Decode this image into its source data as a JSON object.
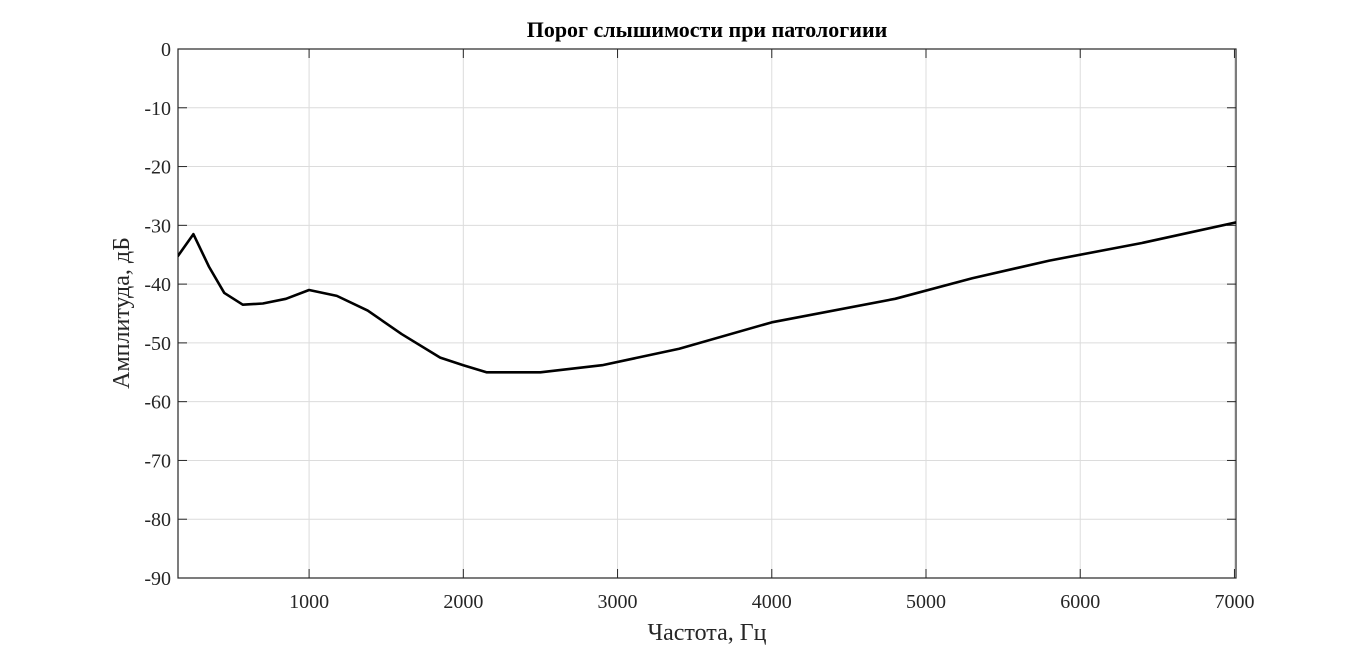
{
  "chart_data": {
    "type": "line",
    "title": "Порог слышимости при патологиии",
    "xlabel": "Частота, Гц",
    "ylabel": "Амплитуда, дБ",
    "xlim": [
      150,
      7010
    ],
    "ylim": [
      -90,
      0
    ],
    "x_ticks": [
      1000,
      2000,
      3000,
      4000,
      5000,
      6000,
      7000
    ],
    "x_tick_labels": [
      "1000",
      "2000",
      "3000",
      "4000",
      "5000",
      "6000",
      "7000"
    ],
    "y_ticks": [
      0,
      -10,
      -20,
      -30,
      -40,
      -50,
      -60,
      -70,
      -80,
      -90
    ],
    "y_tick_labels": [
      "0",
      "-10",
      "-20",
      "-30",
      "-40",
      "-50",
      "-60",
      "-70",
      "-80",
      "-90"
    ],
    "grid": true,
    "line_color": "#000000",
    "series": [
      {
        "x": [
          150,
          250,
          350,
          450,
          570,
          700,
          850,
          1000,
          1180,
          1380,
          1600,
          1850,
          2000,
          2150,
          2500,
          2900,
          3400,
          4000,
          4800,
          5300,
          5800,
          6400,
          7010
        ],
        "y": [
          -35.2,
          -31.5,
          -37,
          -41.5,
          -43.5,
          -43.3,
          -42.5,
          -41,
          -42,
          -44.5,
          -48.5,
          -52.5,
          -53.8,
          -55,
          -55,
          -53.8,
          -51,
          -46.5,
          -42.5,
          -39,
          -36,
          -33,
          -29.5
        ]
      }
    ]
  }
}
